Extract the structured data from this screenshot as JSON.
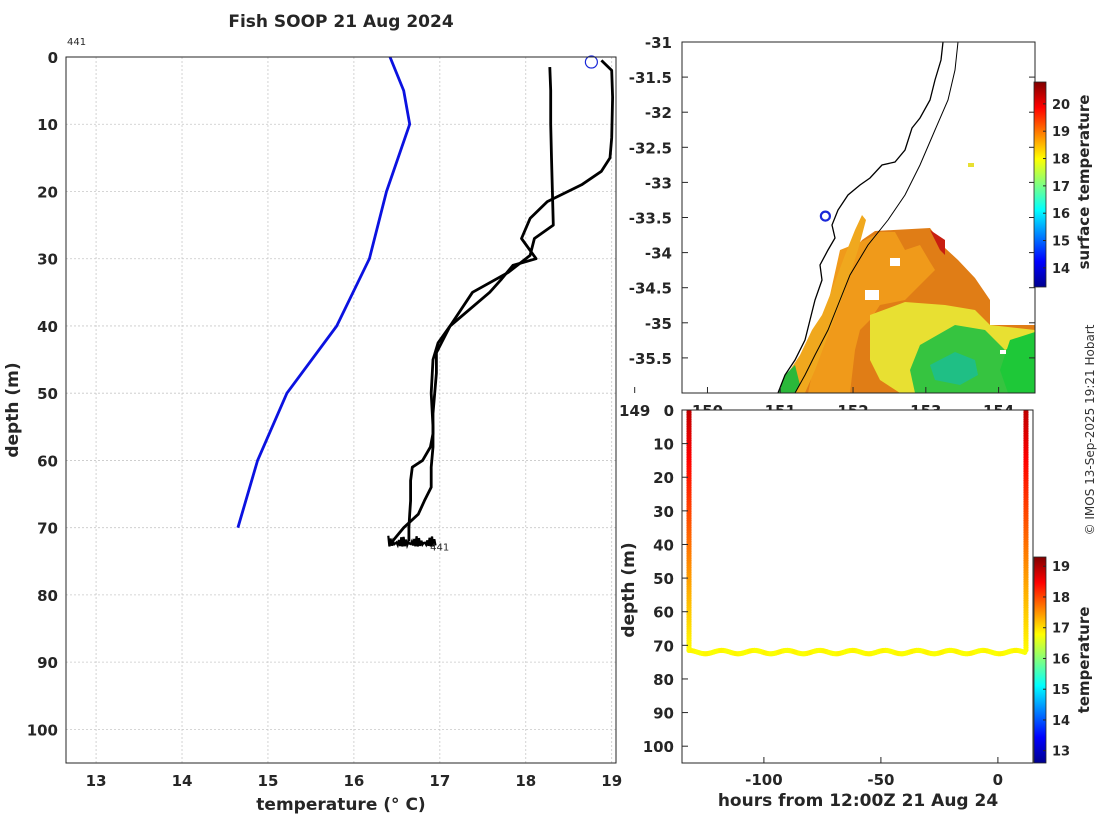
{
  "colors": {
    "profile_blue": "#0b12e0",
    "profile_black": "#000000",
    "marker_blue": "#1a28d8"
  },
  "chart_data": [
    {
      "type": "line",
      "name": "depth-profile",
      "title": "Fish SOOP 21 Aug 2024",
      "id_label": "441",
      "profile_label": "441",
      "xlabel": "temperature (° C)",
      "ylabel": "depth (m)",
      "xlim": [
        12.65,
        19.05
      ],
      "ylim": [
        0,
        105
      ],
      "xticks": [
        13,
        14,
        15,
        16,
        17,
        18,
        19
      ],
      "yticks": [
        0,
        10,
        20,
        30,
        40,
        50,
        60,
        70,
        80,
        90,
        100
      ],
      "grid": true,
      "series": [
        {
          "name": "climatology",
          "color": "#0b12e0",
          "x": [
            16.42,
            16.58,
            16.65,
            16.38,
            16.18,
            15.8,
            15.22,
            14.88,
            14.65
          ],
          "y": [
            0,
            5,
            10,
            20,
            30,
            40,
            50,
            60,
            70
          ]
        },
        {
          "name": "profile-down",
          "color": "#000000",
          "x": [
            18.88,
            19.0,
            19.01,
            19.0,
            18.98,
            18.88,
            18.65,
            18.25,
            18.05,
            17.95,
            18.12,
            17.85,
            17.72,
            17.58,
            17.12,
            16.98,
            16.92,
            16.9,
            16.92,
            16.92,
            16.9,
            16.9,
            16.82,
            16.75,
            16.58,
            16.45
          ],
          "y": [
            0.5,
            2,
            6,
            12,
            15,
            17,
            19,
            21.5,
            24,
            27,
            30,
            31,
            33,
            35,
            40,
            42.5,
            45,
            50,
            55,
            58,
            61,
            64,
            66,
            68,
            70,
            72
          ]
        },
        {
          "name": "profile-up",
          "color": "#000000",
          "x": [
            18.28,
            18.29,
            18.29,
            18.3,
            18.32,
            18.1,
            18.05,
            17.8,
            17.38,
            17.12,
            16.96,
            16.96,
            16.94,
            16.92,
            16.92,
            16.89,
            16.8,
            16.68,
            16.66,
            16.66,
            16.65,
            16.64,
            16.64
          ],
          "y": [
            1.5,
            5,
            10,
            15,
            25,
            27,
            29.5,
            32,
            35,
            40,
            44,
            47,
            50,
            53,
            56,
            58,
            60,
            61,
            63,
            66,
            68,
            70,
            72
          ]
        }
      ],
      "annotations": [
        {
          "text": "441",
          "x": 18.88,
          "y": 0.6,
          "marker": "open-circle"
        },
        {
          "text": "441",
          "x": 16.98,
          "y": 72.8
        }
      ]
    },
    {
      "type": "heatmap",
      "name": "sst-map",
      "xlim": [
        149.65,
        154.5
      ],
      "ylim": [
        -36.0,
        -31.0
      ],
      "xticks": [
        149,
        150,
        151,
        152,
        153,
        154
      ],
      "yticks": [
        -31,
        -31.5,
        -32,
        -32.5,
        -33,
        -33.5,
        -34,
        -34.5,
        -35,
        -35.5
      ],
      "ytick_labels": [
        "-31",
        "-31.5",
        "-32",
        "-32.5",
        "-33",
        "-33.5",
        "-34",
        "-34.5",
        "-35",
        "-35.5"
      ],
      "xtick_labels": [
        "149",
        "150",
        "151",
        "152",
        "153",
        "154"
      ],
      "colorbar_label": "surface temperature",
      "colorbar_range": [
        13.3,
        20.8
      ],
      "colorbar_ticks": [
        14,
        15,
        16,
        17,
        18,
        19,
        20
      ],
      "marker": {
        "lon": 151.62,
        "lat": -33.48
      }
    },
    {
      "type": "scatter",
      "name": "depth-time-section",
      "xlabel": "hours from 12:00Z 21 Aug 24",
      "ylabel": "depth (m)",
      "xlim": [
        -135,
        15
      ],
      "ylim": [
        0,
        105
      ],
      "xticks": [
        -100,
        -50,
        0
      ],
      "yticks": [
        0,
        10,
        20,
        30,
        40,
        50,
        60,
        70,
        80,
        90,
        100
      ],
      "colorbar_label": "temperature",
      "colorbar_range": [
        12.6,
        19.3
      ],
      "colorbar_ticks": [
        13,
        14,
        15,
        16,
        17,
        18,
        19
      ],
      "bottom_depth": 72,
      "left_cast_hours": -132,
      "right_cast_hours": 12,
      "bottom_temperature": 16.8,
      "surface_temperature": 18.9
    }
  ],
  "watermark": "© IMOS 13-Sep-2025 19:21 Hobart"
}
